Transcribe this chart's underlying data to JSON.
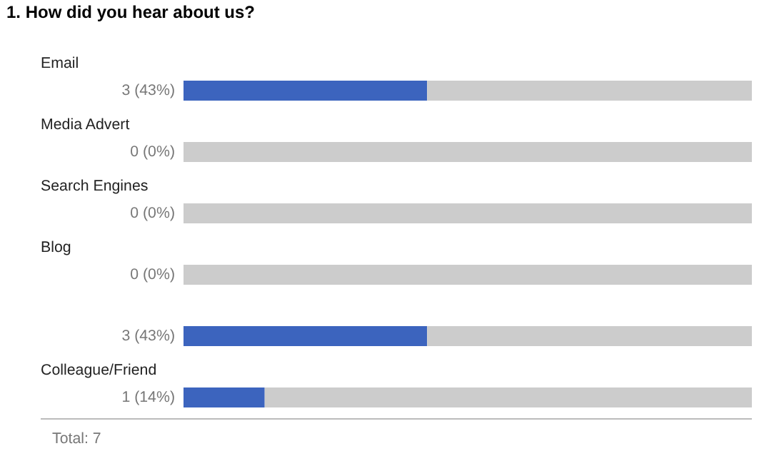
{
  "chart_data": {
    "type": "bar",
    "orientation": "horizontal",
    "title": "1. How did you hear about us?",
    "categories": [
      "Email",
      "Media Advert",
      "Search Engines",
      "Blog",
      null,
      "Colleague/Friend"
    ],
    "series": [
      {
        "color": "#3c64be",
        "values": [
          3,
          0,
          0,
          0,
          3,
          1
        ],
        "value_labels": [
          "3 (43%)",
          "0 (0%)",
          "0 (0%)",
          "0 (0%)",
          "3 (43%)",
          "1 (14%)"
        ]
      },
      {
        "color": "#cccccc",
        "values": [
          4,
          7,
          7,
          7,
          4,
          6
        ]
      }
    ],
    "stacked": true,
    "annotations": [
      "Total: 7"
    ],
    "grid": false
  }
}
